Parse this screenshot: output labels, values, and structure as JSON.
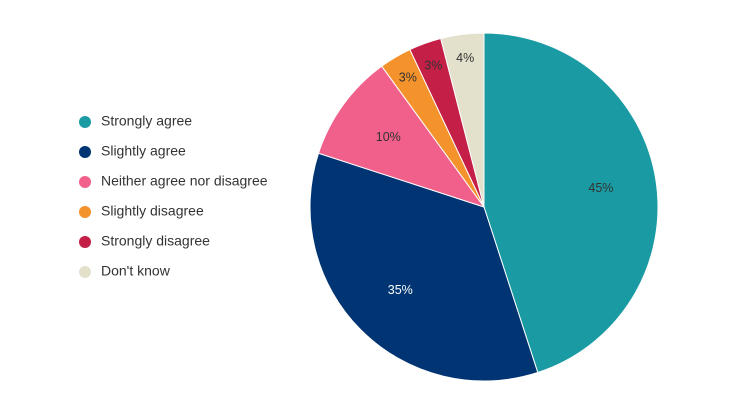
{
  "chart_data": {
    "type": "pie",
    "categories": [
      "Strongly agree",
      "Slightly agree",
      "Neither agree nor disagree",
      "Slightly disagree",
      "Strongly disagree",
      "Don't know"
    ],
    "values": [
      45,
      35,
      10,
      3,
      3,
      4
    ],
    "value_labels": [
      "45%",
      "35%",
      "10%",
      "3%",
      "3%",
      "4%"
    ],
    "colors": [
      "#1a9ba3",
      "#003473",
      "#f0608a",
      "#f4922c",
      "#c41f46",
      "#e3e0cc"
    ],
    "label_colors": [
      "#333333",
      "#ffffff",
      "#333333",
      "#333333",
      "#333333",
      "#333333"
    ],
    "start": "12 o'clock",
    "direction": "clockwise",
    "legend_position": "left",
    "title": "",
    "subtitle": ""
  }
}
